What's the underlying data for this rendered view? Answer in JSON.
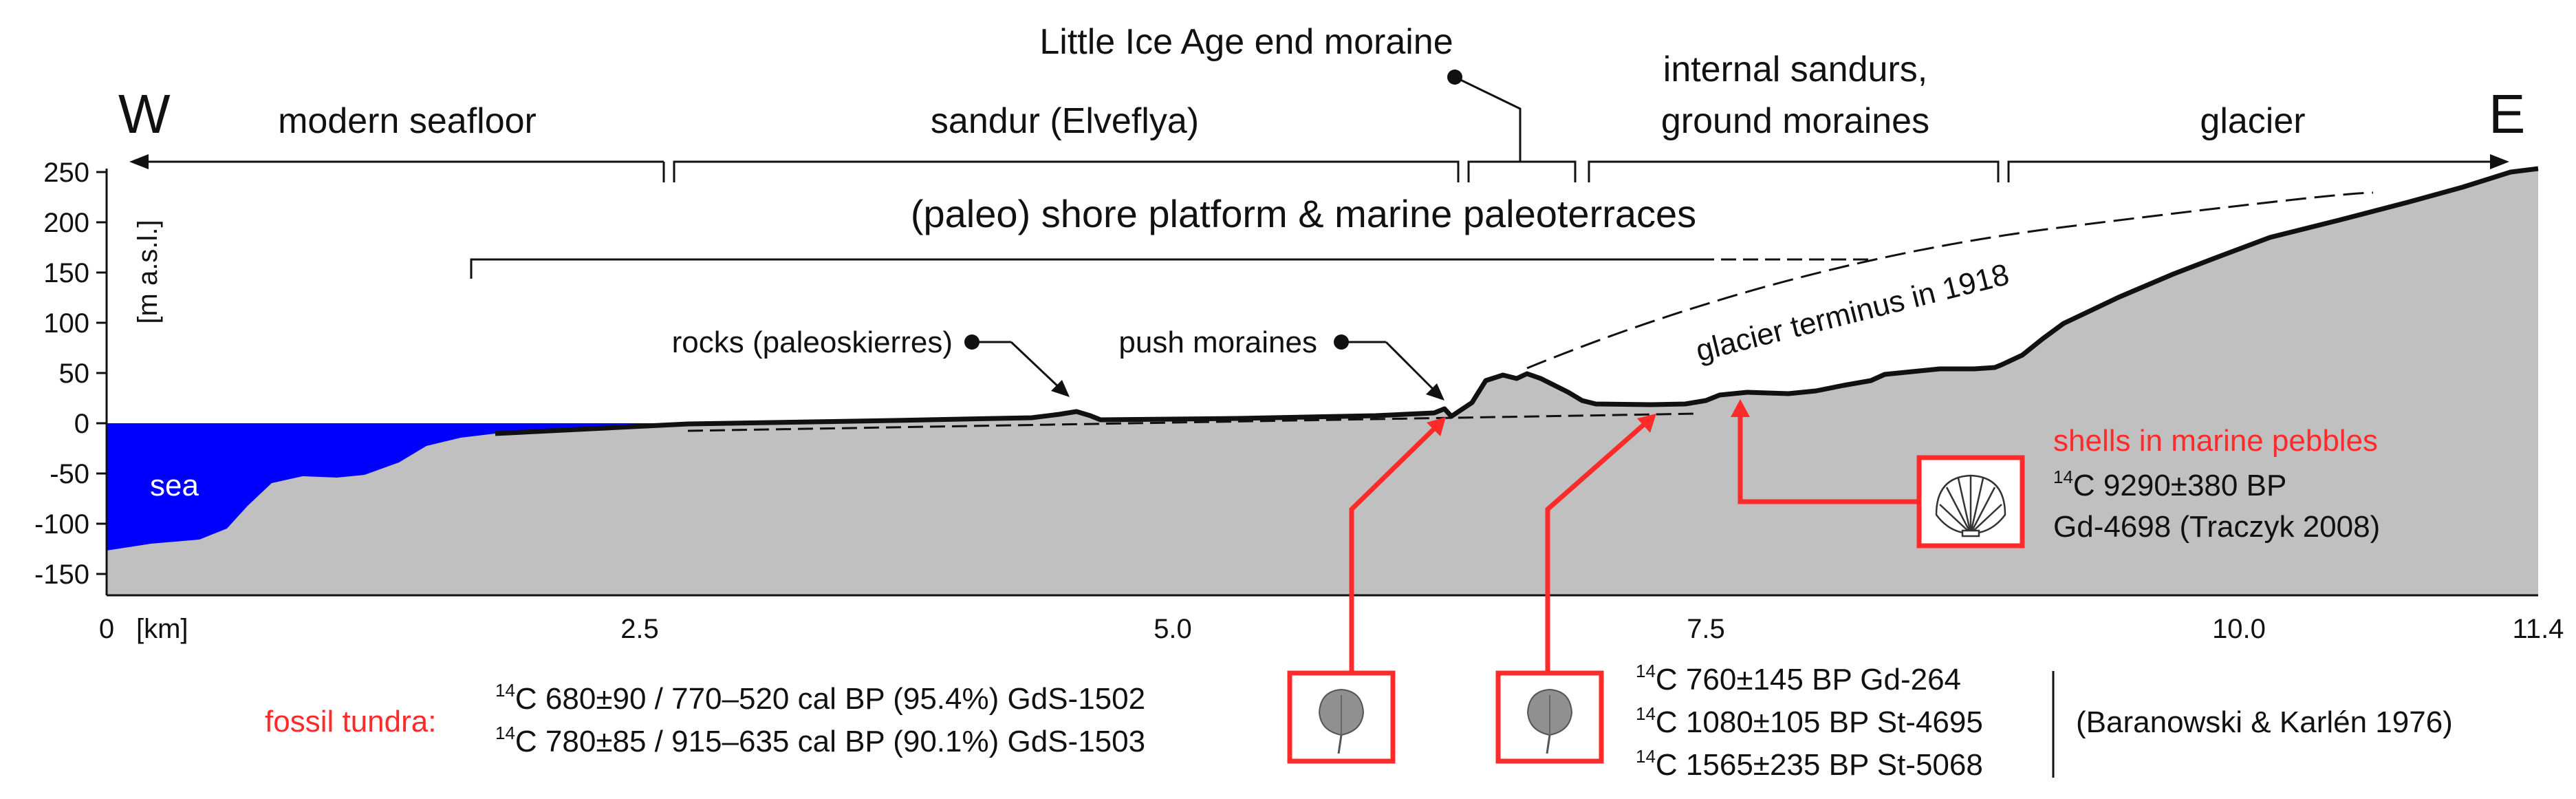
{
  "directions": {
    "west": "W",
    "east": "E"
  },
  "zones": [
    {
      "label": "modern seafloor"
    },
    {
      "label": "sandur (Elveflya)"
    },
    {
      "label": "internal sandurs,",
      "label2": "ground moraines"
    },
    {
      "label": "glacier"
    }
  ],
  "lia_moraine_label": "Little Ice Age end moraine",
  "shore_platform_label": "(paleo) shore platform & marine paleoterraces",
  "y_axis": {
    "label": "[m a.s.l.]",
    "ticks": [
      "250",
      "200",
      "150",
      "100",
      "50",
      "0",
      "-50",
      "-100",
      "-150"
    ]
  },
  "x_axis": {
    "unit": "[km]",
    "ticks": [
      "0",
      "2.5",
      "5.0",
      "7.5",
      "10.0",
      "11.4"
    ]
  },
  "sea_label": "sea",
  "callouts": {
    "rocks": "rocks (paleoskierres)",
    "push_moraines": "push moraines",
    "glacier_terminus": "glacier terminus in 1918"
  },
  "shells": {
    "title": "shells in marine pebbles",
    "date_iso": "14",
    "date": "C 9290±380 BP",
    "ref": "Gd-4698 (Traczyk 2008)"
  },
  "fossil_tundra": {
    "title": "fossil tundra:",
    "dates": [
      {
        "iso": "14",
        "text": "C 680±90 / 770–520 cal BP (95.4%) GdS-1502"
      },
      {
        "iso": "14",
        "text": "C 780±85 / 915–635 cal BP (90.1%) GdS-1503"
      }
    ]
  },
  "baranowski": {
    "dates": [
      {
        "iso": "14",
        "text": "C 760±145 BP Gd-264"
      },
      {
        "iso": "14",
        "text": "C 1080±105 BP St-4695"
      },
      {
        "iso": "14",
        "text": "C 1565±235 BP St-5068"
      }
    ],
    "ref": "(Baranowski & Karlén 1976)"
  },
  "colors": {
    "sea": "#0000ff",
    "land": "#c0c0c0",
    "highlight": "#ff2a2a",
    "ink": "#111111"
  }
}
